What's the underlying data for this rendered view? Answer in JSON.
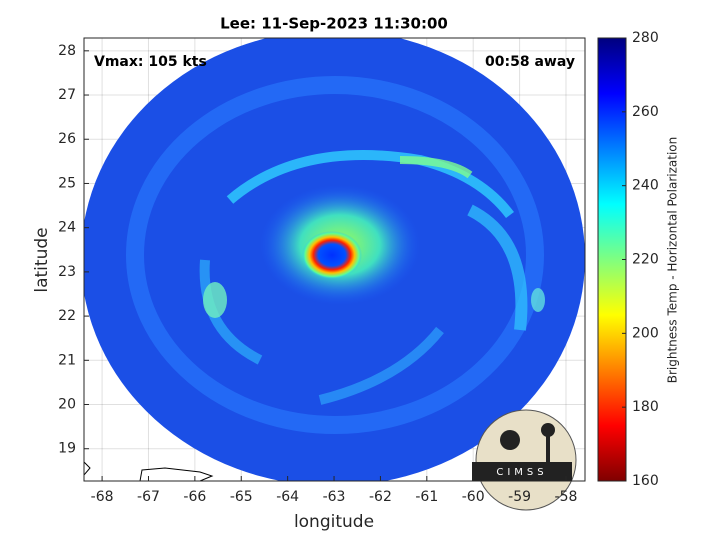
{
  "chart_data": {
    "type": "image",
    "title": "Lee: 11-Sep-2023 11:30:00",
    "annotations": [
      "Vmax: 105 kts",
      "00:58 away"
    ],
    "xlabel": "longitude",
    "ylabel": "latitude",
    "xlim": [
      -68.39,
      -57.59
    ],
    "ylim": [
      18.27,
      28.29
    ],
    "xticks": [
      -68,
      -67,
      -66,
      -65,
      -64,
      -63,
      -62,
      -61,
      -60,
      -59,
      -58
    ],
    "yticks": [
      19,
      20,
      21,
      22,
      23,
      24,
      25,
      26,
      27,
      28
    ],
    "grid": true,
    "colorbar": {
      "label": "Brightness Temp - Horizontal Polarization",
      "lim": [
        160,
        280
      ],
      "ticks": [
        160,
        180,
        200,
        220,
        240,
        260,
        280
      ],
      "colormap": "jet",
      "reversed": true
    }
  },
  "logo_text": "CIMSS"
}
